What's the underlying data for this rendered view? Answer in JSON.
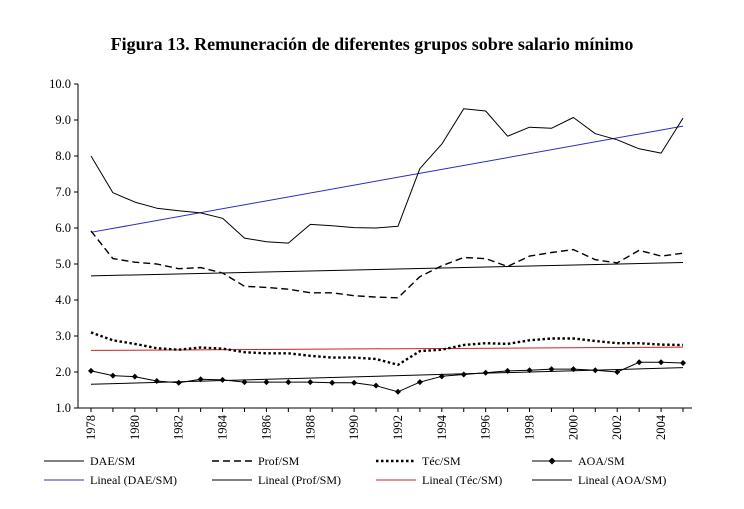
{
  "chart_data": {
    "type": "line",
    "title": "Figura 13. Remuneración de diferentes grupos sobre salario mínimo",
    "xlabel": "",
    "ylabel": "",
    "x": [
      1978,
      1979,
      1980,
      1981,
      1982,
      1983,
      1984,
      1985,
      1986,
      1987,
      1988,
      1989,
      1990,
      1991,
      1992,
      1993,
      1994,
      1995,
      1996,
      1997,
      1998,
      1999,
      2000,
      2001,
      2002,
      2003,
      2004,
      2005
    ],
    "x_tick_labels": [
      "1978",
      "1980",
      "1982",
      "1984",
      "1986",
      "1988",
      "1990",
      "1992",
      "1994",
      "1996",
      "1998",
      "2000",
      "2002",
      "2004"
    ],
    "y_tick_labels": [
      "1.0",
      "2.0",
      "3.0",
      "4.0",
      "5.0",
      "6.0",
      "7.0",
      "8.0",
      "9.0",
      "10.0"
    ],
    "ylim": [
      1.0,
      10.0
    ],
    "grid": false,
    "legend_position": "bottom",
    "series": [
      {
        "name": "DAE/SM",
        "style": "solid",
        "color": "#000000",
        "values": [
          8.0,
          6.98,
          6.72,
          6.55,
          6.48,
          6.42,
          6.27,
          5.72,
          5.62,
          5.58,
          6.1,
          6.06,
          6.01,
          6.0,
          6.05,
          7.65,
          8.33,
          9.31,
          9.25,
          8.55,
          8.8,
          8.77,
          9.07,
          8.62,
          8.45,
          8.2,
          8.08,
          9.05
        ]
      },
      {
        "name": "Prof/SM",
        "style": "dashed",
        "color": "#000000",
        "values": [
          5.92,
          5.15,
          5.05,
          5.0,
          4.87,
          4.9,
          4.75,
          4.38,
          4.35,
          4.3,
          4.2,
          4.2,
          4.12,
          4.08,
          4.06,
          4.65,
          4.95,
          5.18,
          5.15,
          4.93,
          5.22,
          5.32,
          5.4,
          5.12,
          5.03,
          5.38,
          5.22,
          5.3
        ]
      },
      {
        "name": "Téc/SM",
        "style": "dotted",
        "color": "#000000",
        "values": [
          3.1,
          2.88,
          2.78,
          2.66,
          2.62,
          2.68,
          2.65,
          2.55,
          2.52,
          2.52,
          2.45,
          2.4,
          2.4,
          2.36,
          2.2,
          2.58,
          2.62,
          2.75,
          2.8,
          2.78,
          2.88,
          2.93,
          2.93,
          2.86,
          2.8,
          2.8,
          2.76,
          2.75
        ]
      },
      {
        "name": "AOA/SM",
        "style": "solid-diamond",
        "color": "#000000",
        "values": [
          2.03,
          1.9,
          1.87,
          1.75,
          1.7,
          1.8,
          1.78,
          1.72,
          1.72,
          1.72,
          1.72,
          1.7,
          1.7,
          1.62,
          1.45,
          1.72,
          1.88,
          1.93,
          1.98,
          2.03,
          2.05,
          2.08,
          2.08,
          2.05,
          2.0,
          2.27,
          2.27,
          2.25
        ]
      },
      {
        "name": "Lineal (DAE/SM)",
        "style": "trend",
        "color": "#2b2bbd",
        "start": [
          1978,
          5.88
        ],
        "end": [
          2005,
          8.83
        ]
      },
      {
        "name": "Lineal (Prof/SM)",
        "style": "trend",
        "color": "#000000",
        "start": [
          1978,
          4.67
        ],
        "end": [
          2005,
          5.04
        ]
      },
      {
        "name": "Lineal (Téc/SM)",
        "style": "trend",
        "color": "#cc2020",
        "start": [
          1978,
          2.6
        ],
        "end": [
          2005,
          2.69
        ]
      },
      {
        "name": "Lineal (AOA/SM)",
        "style": "trend",
        "color": "#000000",
        "start": [
          1978,
          1.66
        ],
        "end": [
          2005,
          2.12
        ]
      }
    ]
  }
}
